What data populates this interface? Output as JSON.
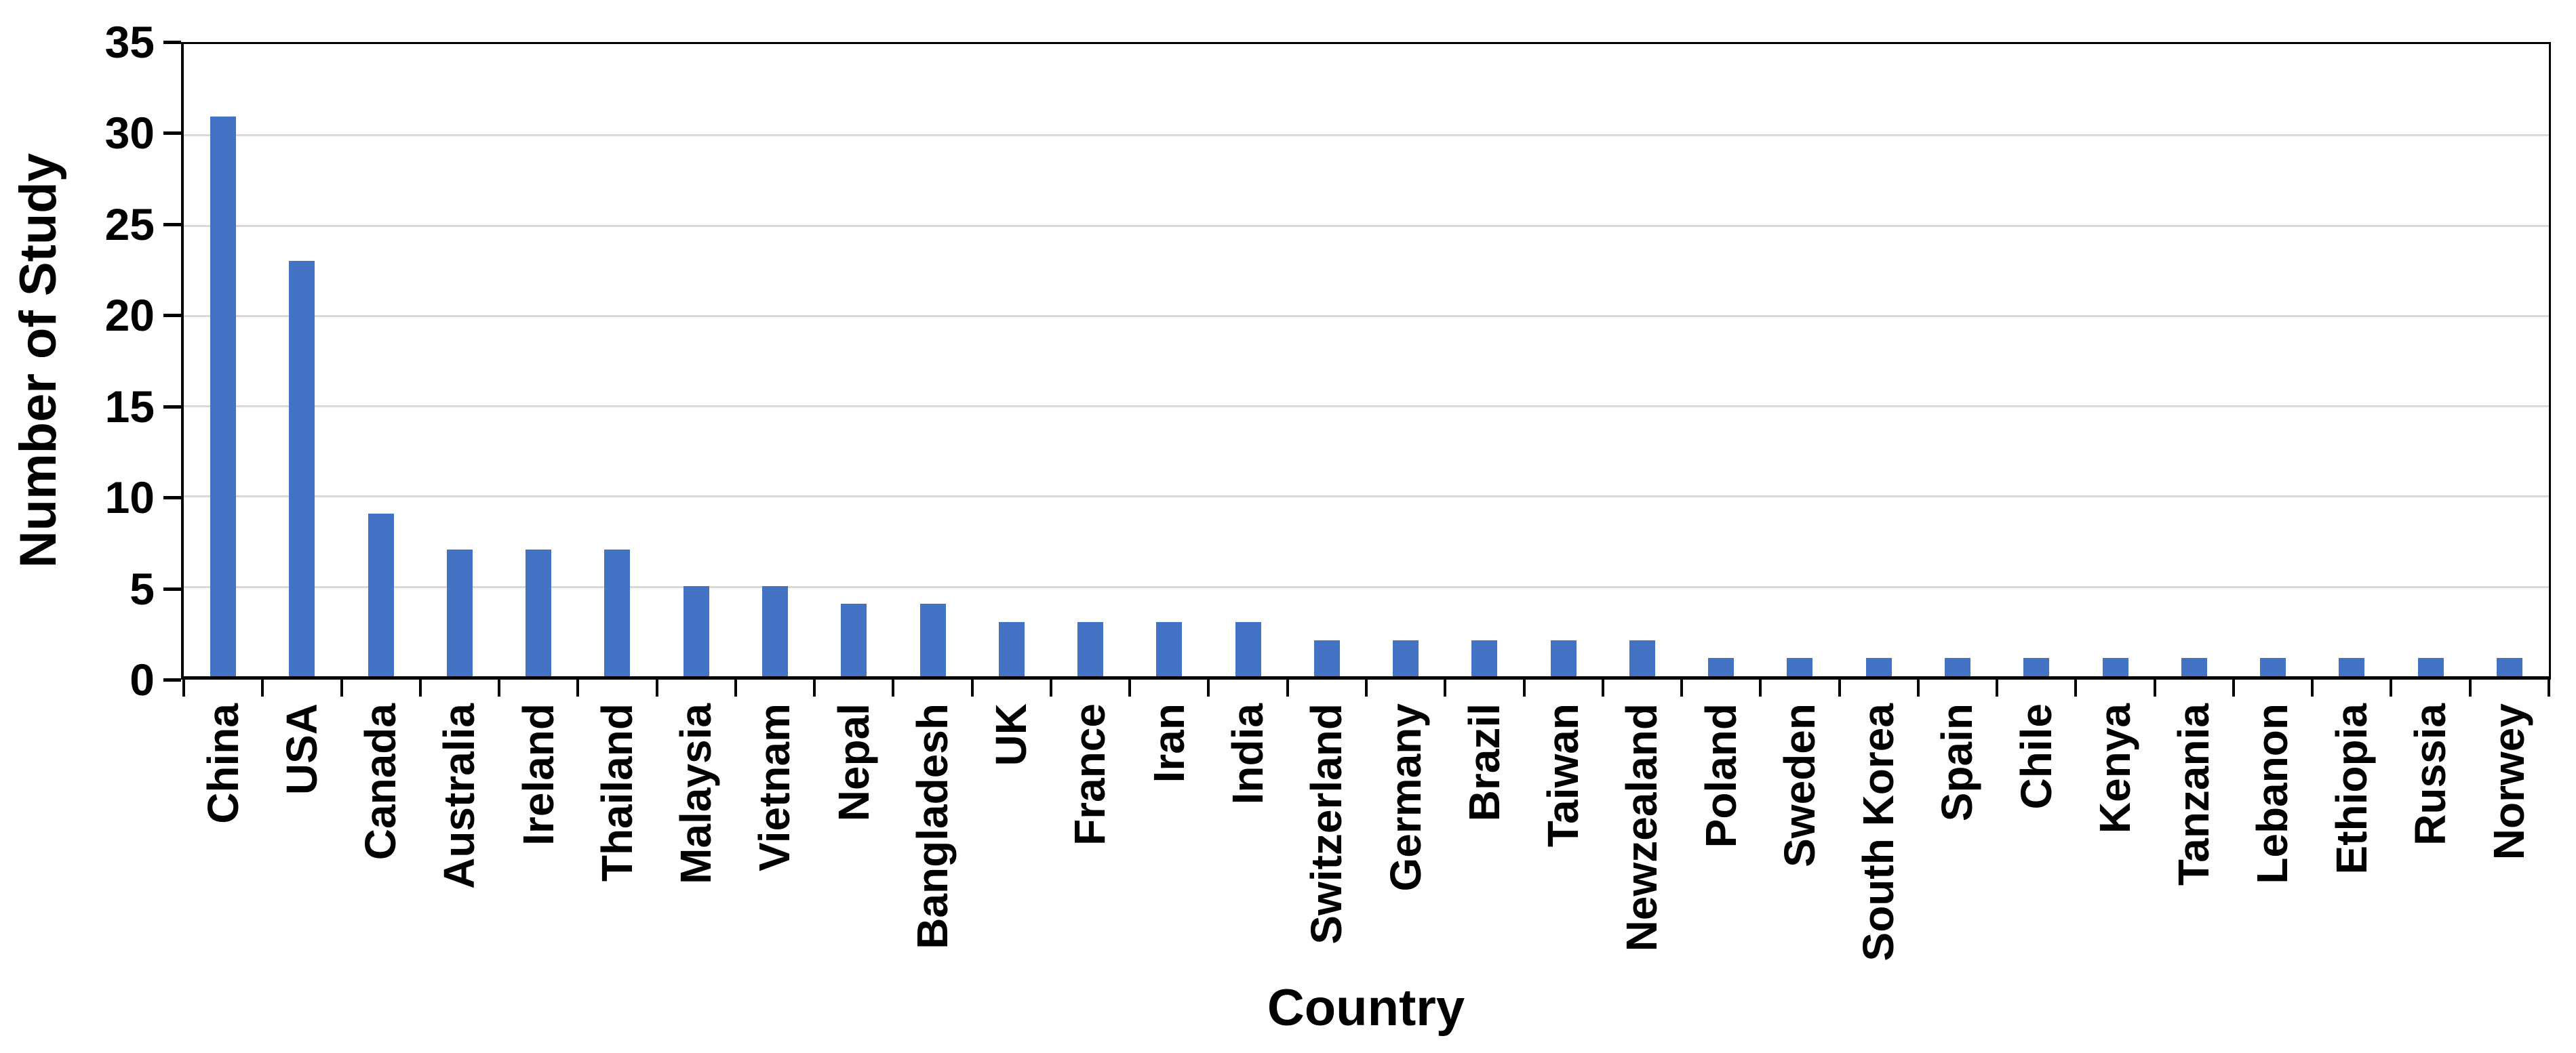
{
  "chart_data": {
    "type": "bar",
    "title": "",
    "xlabel": "Country",
    "ylabel": "Number of Study",
    "categories": [
      "China",
      "USA",
      "Canada",
      "Australia",
      "Ireland",
      "Thailand",
      "Malaysia",
      "Vietnam",
      "Nepal",
      "Bangladesh",
      "UK",
      "France",
      "Iran",
      "India",
      "Switzerland",
      "Germany",
      "Brazil",
      "Taiwan",
      "Newzealand",
      "Poland",
      "Sweden",
      "South Korea",
      "Spain",
      "Chile",
      "Kenya",
      "Tanzania",
      "Lebanon",
      "Ethiopia",
      "Russia",
      "Norwey"
    ],
    "values": [
      31,
      23,
      9,
      7,
      7,
      7,
      5,
      5,
      4,
      4,
      3,
      3,
      3,
      3,
      2,
      2,
      2,
      2,
      2,
      1,
      1,
      1,
      1,
      1,
      1,
      1,
      1,
      1,
      1,
      1
    ],
    "ylim": [
      0,
      35
    ],
    "yticks": [
      0,
      5,
      10,
      15,
      20,
      25,
      30,
      35
    ],
    "gridline_values": [
      5,
      10,
      15,
      20,
      25,
      30
    ],
    "grid": "horizontal",
    "legend": "none",
    "colors": {
      "bar": "#4472C4",
      "gridline": "#D9D9D9",
      "axis": "#000000",
      "background": "#FFFFFF"
    }
  }
}
